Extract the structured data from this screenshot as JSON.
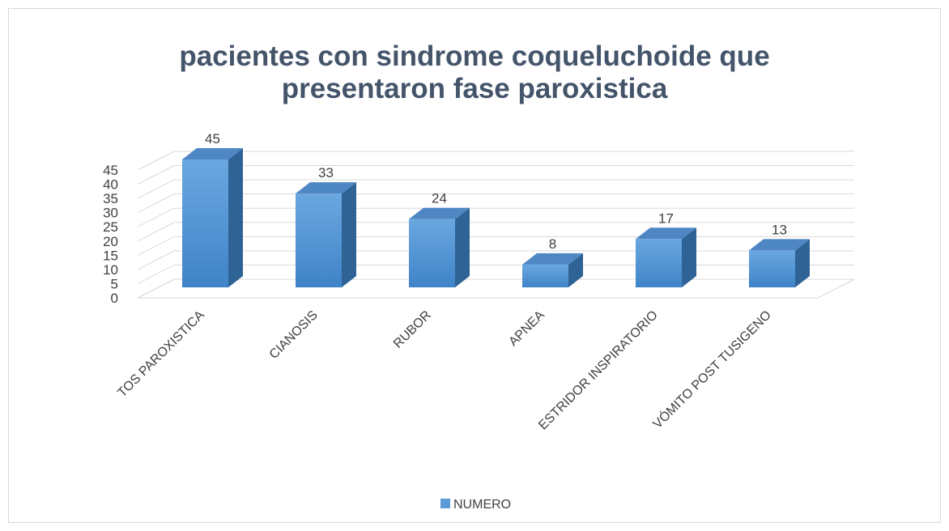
{
  "chart_data": {
    "type": "bar3d",
    "title": "pacientes con sindrome coqueluchoide que presentaron fase paroxistica",
    "categories": [
      "TOS PAROXISTICA",
      "CIANOSIS",
      "RUBOR",
      "APNEA",
      "ESTRIDOR INSPIRATORIO",
      "VÓMITO POST TUSIGENO"
    ],
    "series": [
      {
        "name": "NUMERO",
        "color": "#5b9bd5",
        "values": [
          45,
          33,
          24,
          8,
          17,
          13
        ]
      }
    ],
    "ylim": [
      0,
      45
    ],
    "yticks": [
      0,
      5,
      10,
      15,
      20,
      25,
      30,
      35,
      40,
      45
    ],
    "grid": true,
    "legend": "bottom"
  }
}
